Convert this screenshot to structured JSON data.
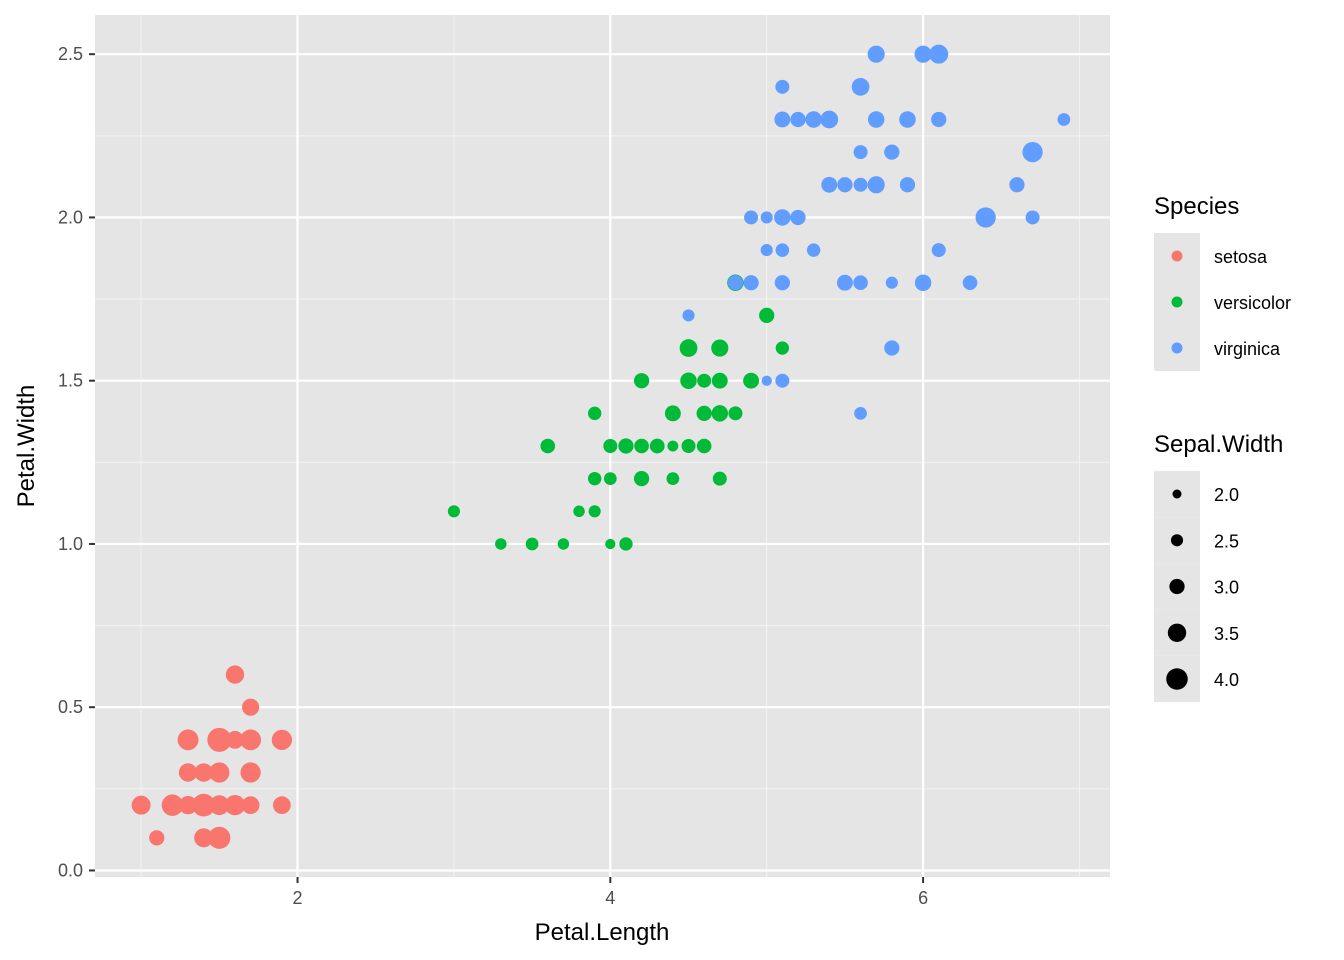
{
  "chart_data": {
    "type": "scatter",
    "title": "",
    "xlabel": "Petal.Length",
    "ylabel": "Petal.Width",
    "xlim": [
      0.705,
      7.195
    ],
    "ylim": [
      -0.02,
      2.62
    ],
    "x_ticks": [
      2,
      4,
      6
    ],
    "x_tick_labels": [
      "2",
      "4",
      "6"
    ],
    "y_ticks": [
      0,
      0.5,
      1,
      1.5,
      2,
      2.5
    ],
    "y_tick_labels": [
      "0.0",
      "0.5",
      "1.0",
      "1.5",
      "2.0",
      "2.5"
    ],
    "grid": true,
    "panel_background": "#e5e5e5",
    "size_range": [
      2.0,
      4.4
    ],
    "legend_position": "right",
    "color_legend": {
      "title": "Species",
      "entries": [
        {
          "label": "setosa",
          "color": "#f8766d"
        },
        {
          "label": "versicolor",
          "color": "#00ba38"
        },
        {
          "label": "virginica",
          "color": "#619cff"
        }
      ]
    },
    "size_legend": {
      "title": "Sepal.Width",
      "entries": [
        {
          "label": "2.0",
          "value": 2.0
        },
        {
          "label": "2.5",
          "value": 2.5
        },
        {
          "label": "3.0",
          "value": 3.0
        },
        {
          "label": "3.5",
          "value": 3.5
        },
        {
          "label": "4.0",
          "value": 4.0
        }
      ]
    },
    "series": [
      {
        "name": "setosa",
        "color": "#f8766d",
        "points": [
          [
            1.4,
            0.2,
            3.5
          ],
          [
            1.4,
            0.2,
            3.0
          ],
          [
            1.3,
            0.2,
            3.2
          ],
          [
            1.5,
            0.2,
            3.1
          ],
          [
            1.4,
            0.2,
            3.6
          ],
          [
            1.7,
            0.4,
            3.9
          ],
          [
            1.4,
            0.3,
            3.4
          ],
          [
            1.5,
            0.2,
            3.4
          ],
          [
            1.4,
            0.2,
            2.9
          ],
          [
            1.5,
            0.1,
            3.1
          ],
          [
            1.5,
            0.2,
            3.7
          ],
          [
            1.6,
            0.2,
            3.4
          ],
          [
            1.4,
            0.1,
            3.0
          ],
          [
            1.1,
            0.1,
            3.0
          ],
          [
            1.2,
            0.2,
            4.0
          ],
          [
            1.5,
            0.4,
            4.4
          ],
          [
            1.3,
            0.4,
            3.9
          ],
          [
            1.4,
            0.3,
            3.5
          ],
          [
            1.7,
            0.3,
            3.8
          ],
          [
            1.5,
            0.3,
            3.8
          ],
          [
            1.7,
            0.2,
            3.4
          ],
          [
            1.5,
            0.4,
            3.7
          ],
          [
            1.0,
            0.2,
            3.6
          ],
          [
            1.7,
            0.5,
            3.3
          ],
          [
            1.9,
            0.2,
            3.4
          ],
          [
            1.6,
            0.2,
            3.0
          ],
          [
            1.6,
            0.4,
            3.4
          ],
          [
            1.5,
            0.2,
            3.5
          ],
          [
            1.4,
            0.2,
            3.4
          ],
          [
            1.6,
            0.2,
            3.2
          ],
          [
            1.6,
            0.2,
            3.1
          ],
          [
            1.5,
            0.4,
            3.4
          ],
          [
            1.5,
            0.1,
            4.1
          ],
          [
            1.4,
            0.2,
            4.2
          ],
          [
            1.5,
            0.2,
            3.1
          ],
          [
            1.2,
            0.2,
            3.2
          ],
          [
            1.3,
            0.2,
            3.5
          ],
          [
            1.4,
            0.1,
            3.6
          ],
          [
            1.3,
            0.2,
            3.0
          ],
          [
            1.5,
            0.2,
            3.4
          ],
          [
            1.3,
            0.3,
            3.5
          ],
          [
            1.3,
            0.3,
            2.3
          ],
          [
            1.3,
            0.2,
            3.2
          ],
          [
            1.6,
            0.6,
            3.5
          ],
          [
            1.9,
            0.4,
            3.8
          ],
          [
            1.4,
            0.3,
            3.0
          ],
          [
            1.6,
            0.2,
            3.8
          ],
          [
            1.4,
            0.2,
            3.2
          ],
          [
            1.5,
            0.2,
            3.7
          ],
          [
            1.4,
            0.2,
            3.3
          ]
        ]
      },
      {
        "name": "versicolor",
        "color": "#00ba38",
        "points": [
          [
            4.7,
            1.4,
            3.2
          ],
          [
            4.5,
            1.5,
            3.2
          ],
          [
            4.9,
            1.5,
            3.1
          ],
          [
            4.0,
            1.3,
            2.3
          ],
          [
            4.6,
            1.5,
            2.8
          ],
          [
            4.5,
            1.3,
            2.8
          ],
          [
            4.7,
            1.6,
            3.3
          ],
          [
            3.3,
            1.0,
            2.4
          ],
          [
            4.6,
            1.3,
            2.9
          ],
          [
            3.9,
            1.4,
            2.7
          ],
          [
            3.5,
            1.0,
            2.0
          ],
          [
            4.2,
            1.5,
            3.0
          ],
          [
            4.0,
            1.0,
            2.2
          ],
          [
            4.7,
            1.4,
            2.9
          ],
          [
            3.6,
            1.3,
            2.9
          ],
          [
            4.4,
            1.4,
            3.1
          ],
          [
            4.5,
            1.5,
            3.0
          ],
          [
            4.1,
            1.0,
            2.7
          ],
          [
            4.5,
            1.5,
            2.2
          ],
          [
            3.9,
            1.1,
            2.5
          ],
          [
            4.8,
            1.8,
            3.2
          ],
          [
            4.0,
            1.3,
            2.8
          ],
          [
            4.9,
            1.5,
            2.5
          ],
          [
            4.7,
            1.2,
            2.8
          ],
          [
            4.3,
            1.3,
            2.9
          ],
          [
            4.4,
            1.4,
            3.0
          ],
          [
            4.8,
            1.4,
            2.8
          ],
          [
            5.0,
            1.7,
            3.0
          ],
          [
            4.5,
            1.5,
            2.9
          ],
          [
            3.5,
            1.0,
            2.6
          ],
          [
            3.8,
            1.1,
            2.4
          ],
          [
            3.7,
            1.0,
            2.4
          ],
          [
            3.9,
            1.2,
            2.7
          ],
          [
            5.1,
            1.6,
            2.7
          ],
          [
            4.5,
            1.5,
            3.0
          ],
          [
            4.5,
            1.6,
            3.4
          ],
          [
            4.7,
            1.5,
            3.1
          ],
          [
            4.4,
            1.3,
            2.3
          ],
          [
            4.1,
            1.3,
            3.0
          ],
          [
            4.0,
            1.3,
            2.5
          ],
          [
            4.4,
            1.2,
            2.6
          ],
          [
            4.6,
            1.4,
            3.0
          ],
          [
            4.0,
            1.2,
            2.6
          ],
          [
            3.3,
            1.0,
            2.3
          ],
          [
            4.2,
            1.3,
            2.7
          ],
          [
            4.2,
            1.2,
            3.0
          ],
          [
            4.2,
            1.3,
            2.9
          ],
          [
            4.3,
            1.3,
            2.9
          ],
          [
            3.0,
            1.1,
            2.5
          ],
          [
            4.1,
            1.3,
            2.8
          ]
        ]
      },
      {
        "name": "virginica",
        "color": "#619cff",
        "points": [
          [
            6.0,
            2.5,
            3.3
          ],
          [
            5.1,
            1.9,
            2.7
          ],
          [
            5.9,
            2.1,
            3.0
          ],
          [
            5.6,
            1.8,
            2.9
          ],
          [
            5.8,
            2.2,
            3.0
          ],
          [
            6.6,
            2.1,
            3.0
          ],
          [
            4.5,
            1.7,
            2.5
          ],
          [
            6.3,
            1.8,
            2.9
          ],
          [
            5.8,
            1.8,
            2.5
          ],
          [
            6.1,
            2.5,
            3.6
          ],
          [
            5.1,
            2.0,
            3.2
          ],
          [
            5.3,
            1.9,
            2.7
          ],
          [
            5.5,
            2.1,
            3.0
          ],
          [
            5.0,
            2.0,
            2.5
          ],
          [
            5.1,
            2.4,
            2.8
          ],
          [
            5.3,
            2.3,
            3.2
          ],
          [
            5.5,
            1.8,
            3.0
          ],
          [
            6.7,
            2.2,
            3.8
          ],
          [
            6.9,
            2.3,
            2.6
          ],
          [
            5.0,
            1.5,
            2.2
          ],
          [
            5.7,
            2.3,
            3.2
          ],
          [
            4.9,
            2.0,
            2.8
          ],
          [
            6.7,
            2.0,
            2.8
          ],
          [
            4.9,
            1.8,
            2.7
          ],
          [
            5.7,
            2.1,
            3.3
          ],
          [
            6.0,
            1.8,
            3.2
          ],
          [
            4.8,
            1.8,
            2.8
          ],
          [
            4.9,
            1.8,
            3.0
          ],
          [
            5.6,
            2.1,
            2.8
          ],
          [
            5.8,
            1.6,
            3.0
          ],
          [
            6.1,
            1.9,
            2.8
          ],
          [
            6.4,
            2.0,
            3.8
          ],
          [
            5.6,
            2.2,
            2.8
          ],
          [
            5.1,
            1.5,
            2.8
          ],
          [
            5.6,
            1.4,
            2.6
          ],
          [
            6.1,
            2.3,
            3.0
          ],
          [
            5.6,
            2.4,
            3.4
          ],
          [
            5.5,
            1.8,
            3.1
          ],
          [
            4.8,
            1.8,
            3.0
          ],
          [
            5.4,
            2.1,
            3.1
          ],
          [
            5.6,
            2.4,
            3.1
          ],
          [
            5.1,
            2.3,
            3.1
          ],
          [
            5.1,
            1.9,
            2.7
          ],
          [
            5.9,
            2.3,
            3.2
          ],
          [
            5.7,
            2.5,
            3.3
          ],
          [
            5.2,
            2.3,
            3.0
          ],
          [
            5.0,
            1.9,
            2.5
          ],
          [
            5.2,
            2.0,
            3.0
          ],
          [
            5.4,
            2.3,
            3.4
          ],
          [
            5.1,
            1.8,
            3.0
          ]
        ]
      }
    ]
  }
}
